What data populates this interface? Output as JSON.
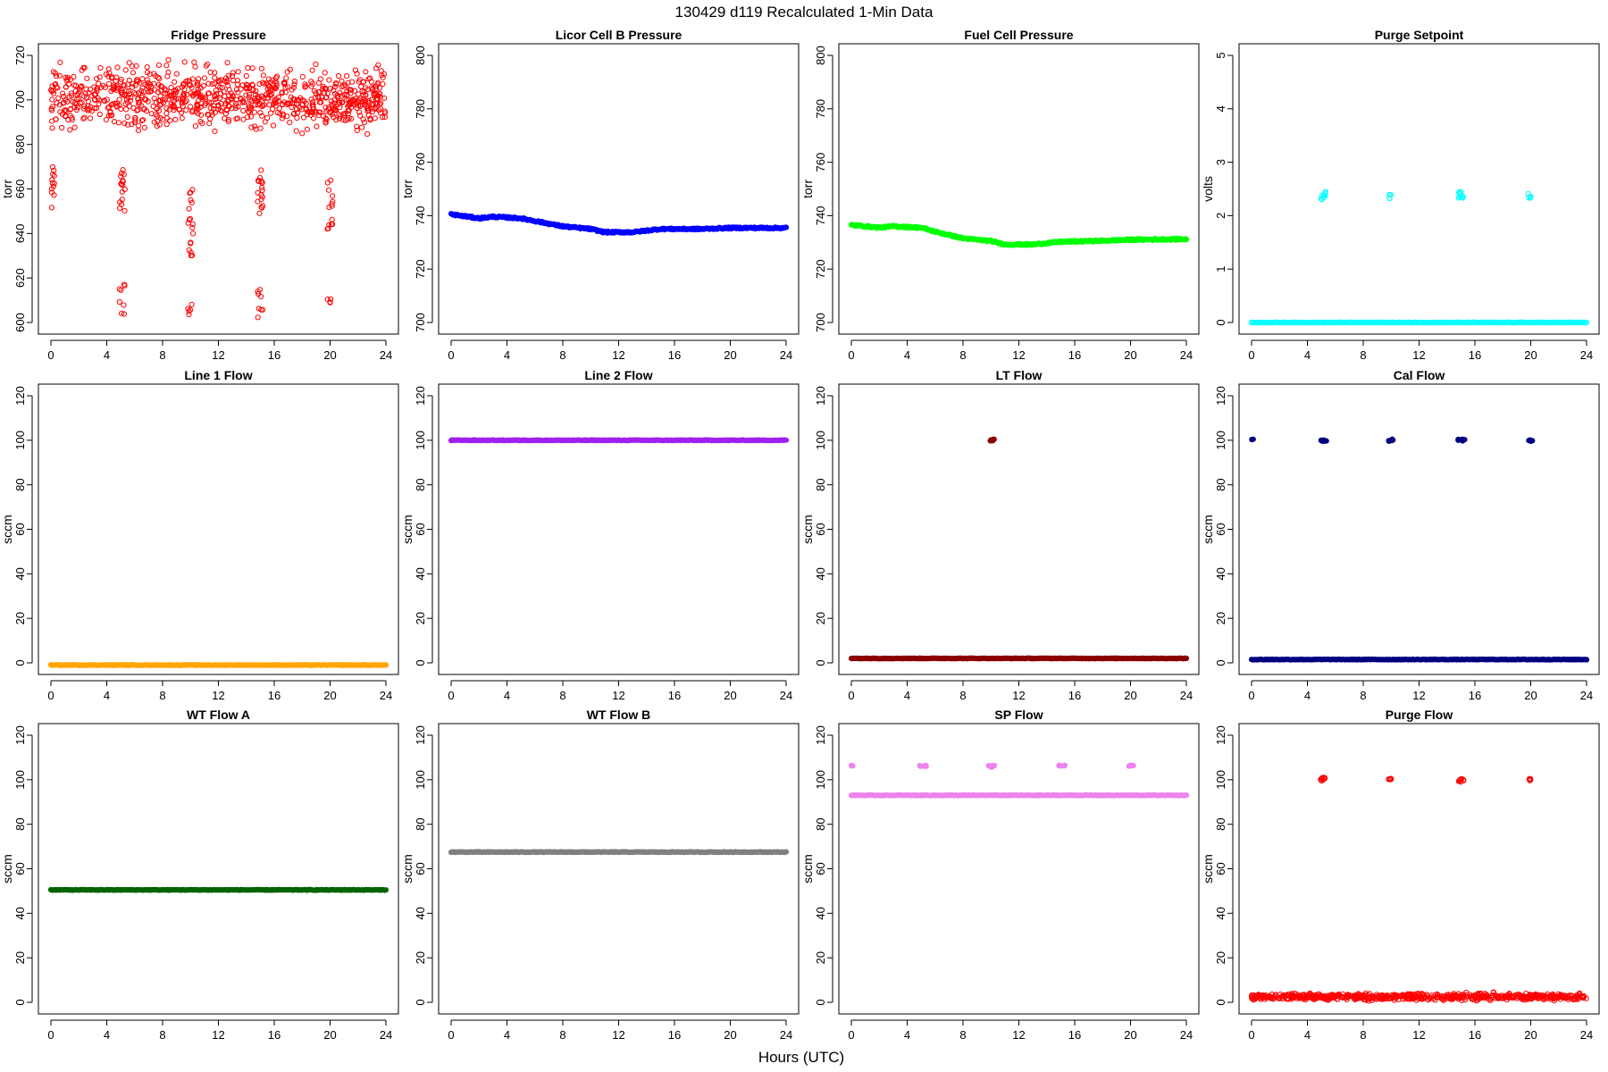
{
  "figure": {
    "title": "130429   d119   Recalculated 1-Min Data",
    "xlabel": "Hours (UTC)"
  },
  "chart_data": [
    {
      "id": "fridge",
      "type": "scatter",
      "title": "Fridge Pressure",
      "ylabel": "torr",
      "color": "#ff0000",
      "style": "open",
      "xlim": [
        0,
        24
      ],
      "ylim": [
        600,
        720
      ],
      "yticks": [
        600,
        620,
        640,
        660,
        680,
        700,
        720
      ],
      "xticks": [
        0,
        4,
        8,
        12,
        16,
        20,
        24
      ],
      "series": [
        {
          "name": "baseline",
          "kind": "noise",
          "x_range": [
            0,
            24
          ],
          "center": 701,
          "spread": 8,
          "n": 900
        },
        {
          "name": "cal1",
          "kind": "cluster",
          "x": [
            0.05,
            0.25
          ],
          "y": [
            650,
            672
          ],
          "n": 12
        },
        {
          "name": "cal2",
          "kind": "cluster",
          "x": [
            4.9,
            5.3
          ],
          "y": [
            650,
            670
          ],
          "n": 16
        },
        {
          "name": "cal3",
          "kind": "cluster",
          "x": [
            9.8,
            10.2
          ],
          "y": [
            628,
            660
          ],
          "n": 18
        },
        {
          "name": "cal4",
          "kind": "cluster",
          "x": [
            14.8,
            15.2
          ],
          "y": [
            648,
            670
          ],
          "n": 18
        },
        {
          "name": "cal5",
          "kind": "cluster",
          "x": [
            19.8,
            20.2
          ],
          "y": [
            642,
            666
          ],
          "n": 14
        },
        {
          "name": "low2",
          "kind": "cluster",
          "x": [
            4.9,
            5.3
          ],
          "y": [
            603,
            618
          ],
          "n": 8
        },
        {
          "name": "low3",
          "kind": "cluster",
          "x": [
            9.8,
            10.2
          ],
          "y": [
            603,
            610
          ],
          "n": 5
        },
        {
          "name": "low4",
          "kind": "cluster",
          "x": [
            14.8,
            15.2
          ],
          "y": [
            600,
            616
          ],
          "n": 8
        },
        {
          "name": "low5",
          "kind": "cluster",
          "x": [
            19.8,
            20.2
          ],
          "y": [
            603,
            612
          ],
          "n": 5
        }
      ]
    },
    {
      "id": "licor",
      "type": "scatter",
      "title": "Licor Cell B Pressure",
      "ylabel": "torr",
      "color": "#0000ff",
      "style": "filled",
      "xlim": [
        0,
        24
      ],
      "ylim": [
        700,
        800
      ],
      "yticks": [
        700,
        720,
        740,
        760,
        780,
        800
      ],
      "xticks": [
        0,
        4,
        8,
        12,
        16,
        20,
        24
      ],
      "series": [
        {
          "name": "pressure",
          "kind": "line",
          "points": [
            [
              0,
              740.5
            ],
            [
              2,
              739
            ],
            [
              3,
              739.6
            ],
            [
              5,
              739
            ],
            [
              7,
              737
            ],
            [
              8,
              736
            ],
            [
              10,
              735
            ],
            [
              11,
              733.8
            ],
            [
              13,
              733.8
            ],
            [
              15,
              735
            ],
            [
              18,
              735
            ],
            [
              20,
              735.4
            ],
            [
              24,
              735.4
            ]
          ]
        }
      ]
    },
    {
      "id": "fuelcell",
      "type": "scatter",
      "title": "Fuel Cell Pressure",
      "ylabel": "torr",
      "color": "#00ff00",
      "style": "filled",
      "xlim": [
        0,
        24
      ],
      "ylim": [
        700,
        800
      ],
      "yticks": [
        700,
        720,
        740,
        760,
        780,
        800
      ],
      "xticks": [
        0,
        4,
        8,
        12,
        16,
        20,
        24
      ],
      "series": [
        {
          "name": "pressure",
          "kind": "line",
          "points": [
            [
              0,
              736.5
            ],
            [
              2,
              735.5
            ],
            [
              3,
              736
            ],
            [
              5,
              735.5
            ],
            [
              6,
              734
            ],
            [
              8,
              731.5
            ],
            [
              10,
              730.5
            ],
            [
              11,
              729.2
            ],
            [
              13,
              729.2
            ],
            [
              15,
              730.2
            ],
            [
              18,
              730.6
            ],
            [
              20,
              731
            ],
            [
              24,
              731.2
            ]
          ]
        }
      ]
    },
    {
      "id": "purgesp",
      "type": "scatter",
      "title": "Purge Setpoint",
      "ylabel": "volts",
      "color": "#00ffff",
      "style": "open",
      "xlim": [
        0,
        24
      ],
      "ylim": [
        0,
        5
      ],
      "yticks": [
        0,
        1,
        2,
        3,
        4,
        5
      ],
      "xticks": [
        0,
        4,
        8,
        12,
        16,
        20,
        24
      ],
      "series": [
        {
          "name": "baseline",
          "kind": "flat",
          "x_range": [
            0,
            24
          ],
          "y": 0
        },
        {
          "name": "p1",
          "kind": "cluster",
          "x": [
            4.9,
            5.3
          ],
          "y": [
            2.3,
            2.45
          ],
          "n": 10
        },
        {
          "name": "p2",
          "kind": "cluster",
          "x": [
            9.8,
            10.0
          ],
          "y": [
            2.3,
            2.42
          ],
          "n": 5
        },
        {
          "name": "p3",
          "kind": "cluster",
          "x": [
            14.8,
            15.2
          ],
          "y": [
            2.3,
            2.45
          ],
          "n": 10
        },
        {
          "name": "p4",
          "kind": "cluster",
          "x": [
            19.8,
            20.0
          ],
          "y": [
            2.32,
            2.45
          ],
          "n": 5
        }
      ]
    },
    {
      "id": "line1",
      "type": "scatter",
      "title": "Line 1 Flow",
      "ylabel": "sccm",
      "color": "#ffa500",
      "style": "filled",
      "xlim": [
        0,
        24
      ],
      "ylim": [
        0,
        120
      ],
      "yticks": [
        0,
        20,
        40,
        60,
        80,
        100,
        120
      ],
      "xticks": [
        0,
        4,
        8,
        12,
        16,
        20,
        24
      ],
      "series": [
        {
          "name": "flow",
          "kind": "flat",
          "x_range": [
            0,
            24
          ],
          "y": -1
        }
      ]
    },
    {
      "id": "line2",
      "type": "scatter",
      "title": "Line 2 Flow",
      "ylabel": "sccm",
      "color": "#a020f0",
      "style": "filled",
      "xlim": [
        0,
        24
      ],
      "ylim": [
        0,
        120
      ],
      "yticks": [
        0,
        20,
        40,
        60,
        80,
        100,
        120
      ],
      "xticks": [
        0,
        4,
        8,
        12,
        16,
        20,
        24
      ],
      "series": [
        {
          "name": "flow",
          "kind": "flat",
          "x_range": [
            0,
            24
          ],
          "y": 100
        }
      ]
    },
    {
      "id": "ltflow",
      "type": "scatter",
      "title": "LT Flow",
      "ylabel": "sccm",
      "color": "#8b0000",
      "style": "filled",
      "xlim": [
        0,
        24
      ],
      "ylim": [
        0,
        120
      ],
      "yticks": [
        0,
        20,
        40,
        60,
        80,
        100,
        120
      ],
      "xticks": [
        0,
        4,
        8,
        12,
        16,
        20,
        24
      ],
      "series": [
        {
          "name": "flow",
          "kind": "flat",
          "x_range": [
            0,
            24
          ],
          "y": 2
        },
        {
          "name": "spike",
          "kind": "cluster",
          "x": [
            9.9,
            10.3
          ],
          "y": [
            99.5,
            100.5
          ],
          "n": 6
        }
      ]
    },
    {
      "id": "calflow",
      "type": "scatter",
      "title": "Cal Flow",
      "ylabel": "sccm",
      "color": "#000080",
      "style": "filled",
      "xlim": [
        0,
        24
      ],
      "ylim": [
        0,
        120
      ],
      "yticks": [
        0,
        20,
        40,
        60,
        80,
        100,
        120
      ],
      "xticks": [
        0,
        4,
        8,
        12,
        16,
        20,
        24
      ],
      "series": [
        {
          "name": "flow",
          "kind": "flat",
          "x_range": [
            0,
            24
          ],
          "y": 1.5
        },
        {
          "name": "c1",
          "kind": "cluster",
          "x": [
            0.0,
            0.15
          ],
          "y": [
            99.5,
            100.5
          ],
          "n": 2
        },
        {
          "name": "c2",
          "kind": "cluster",
          "x": [
            4.9,
            5.4
          ],
          "y": [
            99.5,
            100.5
          ],
          "n": 8
        },
        {
          "name": "c3",
          "kind": "cluster",
          "x": [
            9.8,
            10.2
          ],
          "y": [
            99.5,
            100.5
          ],
          "n": 6
        },
        {
          "name": "c4",
          "kind": "cluster",
          "x": [
            14.8,
            15.3
          ],
          "y": [
            99.5,
            100.5
          ],
          "n": 8
        },
        {
          "name": "c5",
          "kind": "cluster",
          "x": [
            19.8,
            20.2
          ],
          "y": [
            99.5,
            100.5
          ],
          "n": 6
        }
      ]
    },
    {
      "id": "wtflowa",
      "type": "scatter",
      "title": "WT Flow A",
      "ylabel": "sccm",
      "color": "#006400",
      "style": "filled",
      "xlim": [
        0,
        24
      ],
      "ylim": [
        0,
        120
      ],
      "yticks": [
        0,
        20,
        40,
        60,
        80,
        100,
        120
      ],
      "xticks": [
        0,
        4,
        8,
        12,
        16,
        20,
        24
      ],
      "series": [
        {
          "name": "flow",
          "kind": "flat",
          "x_range": [
            0,
            24
          ],
          "y": 50.5
        }
      ]
    },
    {
      "id": "wtflowb",
      "type": "scatter",
      "title": "WT Flow B",
      "ylabel": "sccm",
      "color": "#808080",
      "style": "filled",
      "xlim": [
        0,
        24
      ],
      "ylim": [
        0,
        120
      ],
      "yticks": [
        0,
        20,
        40,
        60,
        80,
        100,
        120
      ],
      "xticks": [
        0,
        4,
        8,
        12,
        16,
        20,
        24
      ],
      "series": [
        {
          "name": "flow",
          "kind": "flat",
          "x_range": [
            0,
            24
          ],
          "y": 67.5
        }
      ]
    },
    {
      "id": "spflow",
      "type": "scatter",
      "title": "SP Flow",
      "ylabel": "sccm",
      "color": "#ee82ee",
      "style": "filled",
      "xlim": [
        0,
        24
      ],
      "ylim": [
        0,
        120
      ],
      "yticks": [
        0,
        20,
        40,
        60,
        80,
        100,
        120
      ],
      "xticks": [
        0,
        4,
        8,
        12,
        16,
        20,
        24
      ],
      "series": [
        {
          "name": "flow",
          "kind": "flat",
          "x_range": [
            0,
            24
          ],
          "y": 93
        },
        {
          "name": "s1",
          "kind": "cluster",
          "x": [
            0.0,
            0.15
          ],
          "y": [
            106,
            106.5
          ],
          "n": 2
        },
        {
          "name": "s2",
          "kind": "cluster",
          "x": [
            4.9,
            5.4
          ],
          "y": [
            106,
            106.5
          ],
          "n": 6
        },
        {
          "name": "s3",
          "kind": "cluster",
          "x": [
            9.8,
            10.3
          ],
          "y": [
            105.5,
            106.5
          ],
          "n": 6
        },
        {
          "name": "s4",
          "kind": "cluster",
          "x": [
            14.8,
            15.3
          ],
          "y": [
            106,
            106.5
          ],
          "n": 6
        },
        {
          "name": "s5",
          "kind": "cluster",
          "x": [
            19.8,
            20.2
          ],
          "y": [
            106,
            106.5
          ],
          "n": 5
        }
      ]
    },
    {
      "id": "purgeflow",
      "type": "scatter",
      "title": "Purge Flow",
      "ylabel": "sccm",
      "color": "#ff0000",
      "style": "open",
      "xlim": [
        0,
        24
      ],
      "ylim": [
        0,
        120
      ],
      "yticks": [
        0,
        20,
        40,
        60,
        80,
        100,
        120
      ],
      "xticks": [
        0,
        4,
        8,
        12,
        16,
        20,
        24
      ],
      "series": [
        {
          "name": "baseline",
          "kind": "noise",
          "x_range": [
            0,
            24
          ],
          "center": 2.5,
          "spread": 0.9,
          "n": 700
        },
        {
          "name": "p1",
          "kind": "cluster",
          "x": [
            4.9,
            5.3
          ],
          "y": [
            99,
            101
          ],
          "n": 10
        },
        {
          "name": "p2",
          "kind": "cluster",
          "x": [
            9.8,
            10.0
          ],
          "y": [
            99.5,
            100.5
          ],
          "n": 5
        },
        {
          "name": "p3",
          "kind": "cluster",
          "x": [
            14.8,
            15.2
          ],
          "y": [
            99,
            101
          ],
          "n": 10
        },
        {
          "name": "p4",
          "kind": "cluster",
          "x": [
            19.8,
            20.0
          ],
          "y": [
            99.5,
            100.5
          ],
          "n": 5
        }
      ]
    }
  ]
}
